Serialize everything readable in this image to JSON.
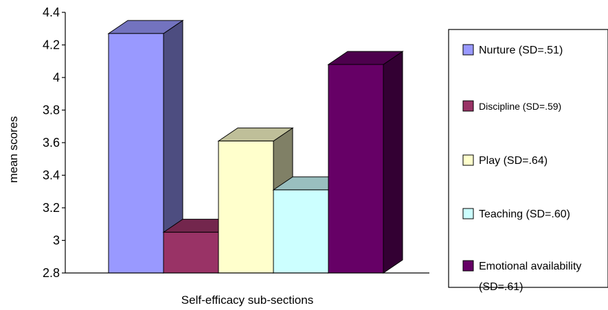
{
  "chart_data": {
    "type": "bar",
    "style": "3d-clustered-column",
    "xlabel": "Self-efficacy sub-sections",
    "ylabel": "mean scores",
    "ylim": [
      2.8,
      4.4
    ],
    "ytick_step": 0.2,
    "yticks": [
      "2.8",
      "3",
      "3.2",
      "3.4",
      "3.6",
      "3.8",
      "4",
      "4.2",
      "4.4"
    ],
    "grid": false,
    "legend_position": "right",
    "series": [
      {
        "name": "Nurture (SD=.51)",
        "value": 4.27,
        "color": "#9999ff"
      },
      {
        "name": "Discipline (SD=.59)",
        "value": 3.05,
        "color": "#993366"
      },
      {
        "name": "Play (SD=.64)",
        "value": 3.61,
        "color": "#ffffcc"
      },
      {
        "name": "Teaching (SD=.60)",
        "value": 3.31,
        "color": "#ccffff"
      },
      {
        "name": "Emotional availability (SD=.61)",
        "value": 4.08,
        "color": "#660066"
      }
    ],
    "legend": [
      {
        "lines": [
          "Nurture (SD=.51)"
        ],
        "font_size": 16
      },
      {
        "lines": [
          "Discipline (SD=.59)"
        ],
        "font_size": 14
      },
      {
        "lines": [
          " Play (SD=.64)"
        ],
        "font_size": 16
      },
      {
        "lines": [
          "Teaching (SD=.60)"
        ],
        "font_size": 16
      },
      {
        "lines": [
          "Emotional availability",
          "(SD=.61)"
        ],
        "font_size": 16
      }
    ]
  }
}
